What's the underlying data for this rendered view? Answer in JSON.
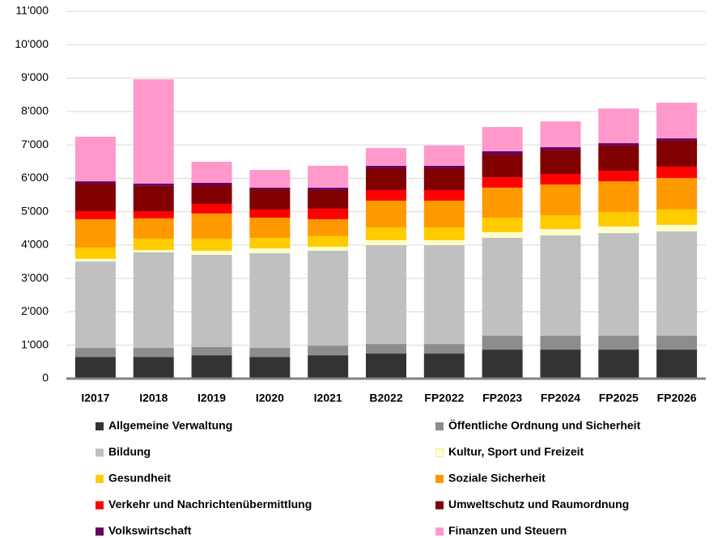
{
  "chart_data": {
    "type": "stacked_bar",
    "categories": [
      "I2017",
      "I2018",
      "I2019",
      "I2020",
      "I2021",
      "B2022",
      "FP2022",
      "FP2023",
      "FP2024",
      "FP2025",
      "FP2026"
    ],
    "series": [
      {
        "name": "Allgemeine Verwaltung",
        "color": "#333333",
        "values": [
          650,
          650,
          700,
          650,
          700,
          750,
          750,
          870,
          870,
          870,
          870
        ]
      },
      {
        "name": "Öffentliche Ordnung und Sicherheit",
        "color": "#8c8c8c",
        "values": [
          270,
          270,
          245,
          270,
          290,
          290,
          290,
          415,
          415,
          415,
          415
        ]
      },
      {
        "name": "Bildung",
        "color": "#c0c0c0",
        "values": [
          2590,
          2860,
          2765,
          2835,
          2840,
          2960,
          2960,
          2930,
          3005,
          3075,
          3125
        ]
      },
      {
        "name": "Kultur, Sport und Freizeit",
        "color": "#ffffcc",
        "values": [
          80,
          70,
          120,
          145,
          120,
          145,
          145,
          170,
          190,
          195,
          195
        ]
      },
      {
        "name": "Gesundheit",
        "color": "#ffcc00",
        "values": [
          335,
          340,
          360,
          315,
          315,
          385,
          385,
          435,
          415,
          435,
          460
        ]
      },
      {
        "name": "Soziale Sicherheit",
        "color": "#ff9900",
        "values": [
          850,
          610,
          755,
          605,
          510,
          800,
          800,
          900,
          920,
          920,
          945
        ]
      },
      {
        "name": "Verkehr und Nachrichtenübermittlung",
        "color": "#ff0000",
        "values": [
          240,
          215,
          290,
          245,
          315,
          315,
          315,
          310,
          315,
          315,
          340
        ]
      },
      {
        "name": "Umweltschutz und Raumordnung",
        "color": "#800000",
        "values": [
          825,
          755,
          555,
          605,
          555,
          655,
          655,
          680,
          725,
          755,
          775
        ]
      },
      {
        "name": "Volkswirtschaft",
        "color": "#660066",
        "values": [
          70,
          70,
          75,
          50,
          75,
          75,
          75,
          100,
          75,
          70,
          70
        ]
      },
      {
        "name": "Finanzen und Steuern",
        "color": "#ff99cc",
        "values": [
          1335,
          3125,
          630,
          530,
          655,
          530,
          605,
          725,
          775,
          1040,
          1070
        ]
      }
    ],
    "ylim": [
      0,
      11000
    ],
    "yticks": [
      0,
      {
        "value": 1000,
        "label": "1'000"
      },
      {
        "value": 2000,
        "label": "2'000"
      },
      {
        "value": 3000,
        "label": "3'000"
      },
      {
        "value": 4000,
        "label": "4'000"
      },
      {
        "value": 5000,
        "label": "5'000"
      },
      {
        "value": 6000,
        "label": "6'000"
      },
      {
        "value": 7000,
        "label": "7'000"
      },
      {
        "value": 8000,
        "label": "8'000"
      },
      {
        "value": 9000,
        "label": "9'000"
      },
      {
        "value": 10000,
        "label": "10'000"
      },
      {
        "value": 11000,
        "label": "11'000"
      }
    ],
    "grid": true
  }
}
